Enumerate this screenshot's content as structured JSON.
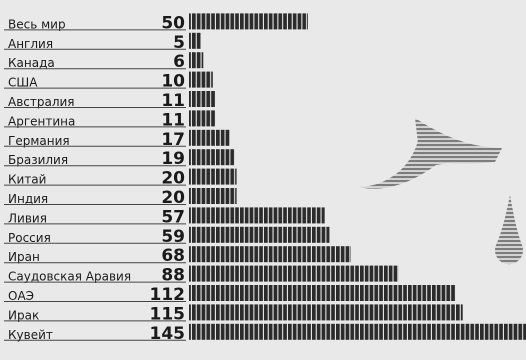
{
  "chart_data": {
    "type": "bar",
    "orientation": "horizontal",
    "title": "",
    "xlabel": "",
    "ylabel": "",
    "xlim": [
      0,
      145
    ],
    "grid": false,
    "legend": "none",
    "categories": [
      "Весь мир",
      "Англия",
      "Канада",
      "США",
      "Австралия",
      "Аргентина",
      "Германия",
      "Бразилия",
      "Китай",
      "Индия",
      "Ливия",
      "Россия",
      "Иран",
      "Саудовская Аравия",
      "ОАЭ",
      "Ирак",
      "Кувейт"
    ],
    "values": [
      50,
      5,
      6,
      10,
      11,
      11,
      17,
      19,
      20,
      20,
      57,
      59,
      68,
      88,
      112,
      115,
      145
    ],
    "value_labels": [
      "50",
      "5",
      "6",
      "10",
      "11",
      "11",
      "17",
      "19",
      "20",
      "20",
      "57",
      "59",
      "68",
      "88",
      "112",
      "115",
      "145"
    ],
    "illustration": "oil-drop-icon"
  },
  "colors": {
    "background": "#e9e9e9",
    "bar": "#2b2b2b",
    "text": "#1a1a1a",
    "drop": "#8f8f8f"
  }
}
